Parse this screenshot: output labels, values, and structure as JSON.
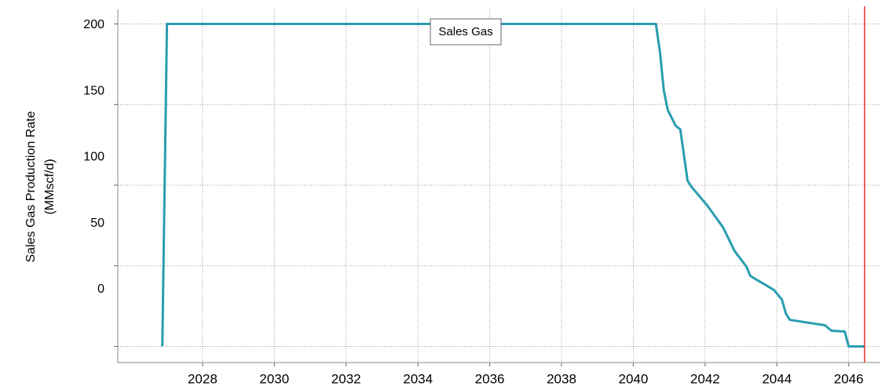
{
  "chart_data": {
    "type": "line",
    "ylabel": [
      "Sales Gas Production Rate",
      "(MMscf/d)"
    ],
    "x": [
      2026.88,
      2027.01,
      2040.63,
      2040.74,
      2040.85,
      2040.96,
      2041.18,
      2041.31,
      2041.51,
      2041.62,
      2042.06,
      2042.5,
      2042.82,
      2043.15,
      2043.26,
      2043.92,
      2044.14,
      2044.25,
      2044.36,
      2044.9,
      2045.34,
      2045.52,
      2045.89,
      2046.0,
      2046.44
    ],
    "series": [
      {
        "name": "Sales Gas",
        "color": "#2a9db0",
        "values": [
          0,
          200,
          200,
          183,
          158.7,
          146.6,
          136.9,
          134.5,
          102.9,
          99,
          87.4,
          73.8,
          59.2,
          49.5,
          43.7,
          35,
          29,
          20.4,
          16.5,
          14.6,
          13.1,
          9.7,
          9.2,
          0,
          0
        ]
      }
    ],
    "xlim": [
      2025.64,
      2046.86
    ],
    "xticks": [
      2028,
      2030,
      2032,
      2034,
      2036,
      2038,
      2040,
      2042,
      2044,
      2046
    ],
    "ylim": [
      -10,
      209
    ],
    "yticks": [
      0,
      50,
      100,
      150,
      200
    ],
    "grid": true,
    "vline_x": 2046.44,
    "vline_color": "#e8322a"
  }
}
